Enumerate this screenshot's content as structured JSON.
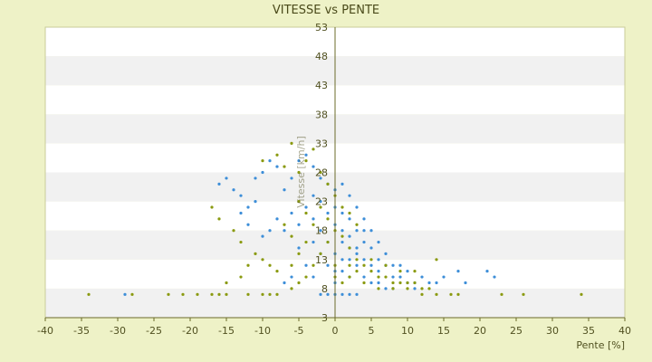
{
  "chart_data": {
    "type": "scatter",
    "title": "VITESSE vs PENTE",
    "xlabel": "Pente [%]",
    "ylabel": "Vitesse [km/h]",
    "xlim": [
      -40,
      40
    ],
    "ylim": [
      3,
      53
    ],
    "xticks": [
      "-40",
      "-35",
      "-30",
      "-25",
      "-20",
      "-15",
      "-10",
      "-5",
      "0",
      "5",
      "10",
      "15",
      "20",
      "25",
      "30",
      "35",
      "40"
    ],
    "yticks": [
      "3",
      "8",
      "13",
      "18",
      "23",
      "28",
      "33",
      "38",
      "43",
      "48",
      "53"
    ],
    "grid": "alternating horizontal bands",
    "legend": "none",
    "series": [
      {
        "color": "#3d8ed8",
        "points": [
          [
            -29,
            7
          ],
          [
            -14,
            25
          ],
          [
            -15,
            27
          ],
          [
            -16,
            26
          ],
          [
            -13,
            24
          ],
          [
            -12,
            22
          ],
          [
            -11,
            27
          ],
          [
            -9,
            30
          ],
          [
            -10,
            28
          ],
          [
            -8,
            29
          ],
          [
            -7,
            25
          ],
          [
            -6,
            27
          ],
          [
            -5,
            30
          ],
          [
            -4,
            31
          ],
          [
            -3,
            29
          ],
          [
            -2,
            27
          ],
          [
            -1,
            26
          ],
          [
            0,
            25
          ],
          [
            1,
            26
          ],
          [
            2,
            24
          ],
          [
            3,
            22
          ],
          [
            4,
            20
          ],
          [
            5,
            18
          ],
          [
            6,
            16
          ],
          [
            7,
            14
          ],
          [
            8,
            12
          ],
          [
            9,
            10
          ],
          [
            10,
            9
          ],
          [
            11,
            8
          ],
          [
            12,
            10
          ],
          [
            13,
            9
          ],
          [
            14,
            9
          ],
          [
            15,
            10
          ],
          [
            17,
            11
          ],
          [
            18,
            9
          ],
          [
            21,
            11
          ],
          [
            22,
            10
          ],
          [
            -3,
            20
          ],
          [
            -2,
            18
          ],
          [
            -1,
            16
          ],
          [
            0,
            14
          ],
          [
            1,
            18
          ],
          [
            2,
            17
          ],
          [
            3,
            15
          ],
          [
            4,
            13
          ],
          [
            5,
            12
          ],
          [
            6,
            11
          ],
          [
            -5,
            15
          ],
          [
            -4,
            12
          ],
          [
            -6,
            10
          ],
          [
            -7,
            9
          ],
          [
            -3,
            10
          ],
          [
            0,
            7
          ],
          [
            1,
            7
          ],
          [
            2,
            7
          ],
          [
            3,
            7
          ],
          [
            -2,
            7
          ],
          [
            -1,
            7
          ],
          [
            0,
            9
          ],
          [
            1,
            11
          ],
          [
            2,
            13
          ],
          [
            3,
            12
          ],
          [
            4,
            10
          ],
          [
            6,
            9
          ],
          [
            8,
            8
          ],
          [
            -4,
            22
          ],
          [
            -3,
            24
          ],
          [
            -2,
            23
          ],
          [
            -1,
            21
          ],
          [
            0,
            22
          ],
          [
            1,
            21
          ],
          [
            2,
            20
          ],
          [
            3,
            18
          ],
          [
            4,
            16
          ],
          [
            -8,
            20
          ],
          [
            -9,
            18
          ],
          [
            -10,
            17
          ],
          [
            -12,
            19
          ],
          [
            -13,
            21
          ],
          [
            -11,
            23
          ],
          [
            -7,
            18
          ],
          [
            -6,
            21
          ],
          [
            -5,
            19
          ],
          [
            -1,
            12
          ],
          [
            0,
            11
          ],
          [
            1,
            13
          ],
          [
            2,
            10
          ],
          [
            -2,
            14
          ],
          [
            -3,
            16
          ],
          [
            0,
            19
          ],
          [
            1,
            16
          ],
          [
            2,
            15
          ],
          [
            3,
            14
          ],
          [
            4,
            18
          ],
          [
            5,
            15
          ],
          [
            6,
            13
          ],
          [
            7,
            12
          ],
          [
            8,
            10
          ],
          [
            9,
            12
          ],
          [
            10,
            11
          ],
          [
            11,
            9
          ],
          [
            5,
            9
          ],
          [
            7,
            8
          ]
        ]
      },
      {
        "color": "#8a9a10",
        "points": [
          [
            -34,
            7
          ],
          [
            -28,
            7
          ],
          [
            -23,
            7
          ],
          [
            -21,
            7
          ],
          [
            -19,
            7
          ],
          [
            -17,
            7
          ],
          [
            -16,
            7
          ],
          [
            -15,
            7
          ],
          [
            -12,
            7
          ],
          [
            -10,
            7
          ],
          [
            -9,
            7
          ],
          [
            -8,
            7
          ],
          [
            -6,
            8
          ],
          [
            -5,
            9
          ],
          [
            -4,
            10
          ],
          [
            -3,
            12
          ],
          [
            -2,
            14
          ],
          [
            -1,
            16
          ],
          [
            0,
            12
          ],
          [
            2,
            10
          ],
          [
            4,
            9
          ],
          [
            6,
            8
          ],
          [
            8,
            8
          ],
          [
            10,
            8
          ],
          [
            12,
            7
          ],
          [
            14,
            7
          ],
          [
            16,
            7
          ],
          [
            17,
            7
          ],
          [
            23,
            7
          ],
          [
            26,
            7
          ],
          [
            34,
            7
          ],
          [
            -17,
            22
          ],
          [
            -16,
            20
          ],
          [
            -14,
            18
          ],
          [
            -13,
            16
          ],
          [
            -11,
            14
          ],
          [
            -10,
            13
          ],
          [
            -9,
            12
          ],
          [
            -8,
            11
          ],
          [
            -7,
            19
          ],
          [
            -6,
            17
          ],
          [
            -5,
            23
          ],
          [
            -4,
            21
          ],
          [
            -3,
            19
          ],
          [
            -2,
            22
          ],
          [
            -1,
            20
          ],
          [
            0,
            18
          ],
          [
            1,
            17
          ],
          [
            2,
            15
          ],
          [
            3,
            13
          ],
          [
            4,
            12
          ],
          [
            5,
            11
          ],
          [
            6,
            10
          ],
          [
            7,
            10
          ],
          [
            8,
            9
          ],
          [
            9,
            9
          ],
          [
            10,
            9
          ],
          [
            11,
            9
          ],
          [
            12,
            8
          ],
          [
            13,
            8
          ],
          [
            -10,
            30
          ],
          [
            -8,
            31
          ],
          [
            -7,
            29
          ],
          [
            -6,
            33
          ],
          [
            -5,
            28
          ],
          [
            -4,
            30
          ],
          [
            -3,
            32
          ],
          [
            -2,
            28
          ],
          [
            -1,
            26
          ],
          [
            0,
            24
          ],
          [
            1,
            22
          ],
          [
            2,
            21
          ],
          [
            3,
            19
          ],
          [
            -15,
            9
          ],
          [
            -13,
            10
          ],
          [
            -12,
            12
          ],
          [
            -6,
            12
          ],
          [
            -5,
            14
          ],
          [
            -4,
            16
          ],
          [
            0,
            10
          ],
          [
            1,
            9
          ],
          [
            2,
            12
          ],
          [
            3,
            11
          ],
          [
            5,
            13
          ],
          [
            7,
            12
          ],
          [
            9,
            11
          ],
          [
            11,
            11
          ],
          [
            14,
            13
          ]
        ]
      }
    ]
  }
}
